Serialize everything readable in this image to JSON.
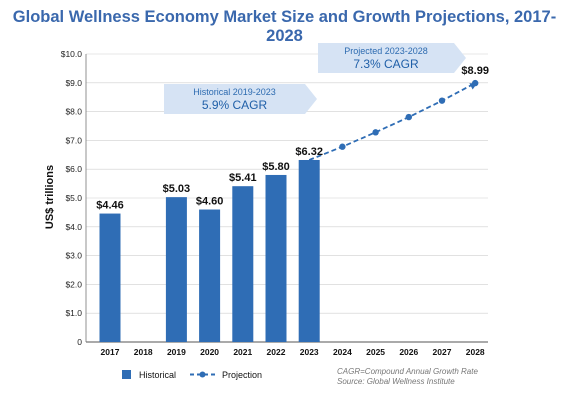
{
  "chart_data": {
    "type": "bar",
    "title": "Global Wellness Economy Market Size and Growth Projections, 2017-2028",
    "ylabel": "US$ trillions",
    "xlabel": "",
    "ylim": [
      0,
      10
    ],
    "yticks": [
      "0",
      "$1.0",
      "$2.0",
      "$3.0",
      "$4.0",
      "$5.0",
      "$6.0",
      "$7.0",
      "$8.0",
      "$9.0",
      "$10.0"
    ],
    "categories": [
      "2017",
      "2018",
      "2019",
      "2020",
      "2021",
      "2022",
      "2023",
      "2024",
      "2025",
      "2026",
      "2027",
      "2028"
    ],
    "series": [
      {
        "name": "Historical",
        "kind": "bar",
        "color": "#2f6db5",
        "values": [
          4.46,
          null,
          5.03,
          4.6,
          5.41,
          5.8,
          6.32,
          null,
          null,
          null,
          null,
          null
        ],
        "labels": [
          "$4.46",
          "",
          "$5.03",
          "$4.60",
          "$5.41",
          "$5.80",
          "$6.32",
          "",
          "",
          "",
          "",
          ""
        ]
      },
      {
        "name": "Projection",
        "kind": "dashed-line",
        "color": "#2f6db5",
        "values": [
          null,
          null,
          null,
          null,
          null,
          null,
          6.32,
          6.78,
          7.28,
          7.81,
          8.38,
          8.99
        ],
        "labels": [
          "",
          "",
          "",
          "",
          "",
          "",
          "",
          "",
          "",
          "",
          "",
          "$8.99"
        ]
      }
    ],
    "annotations": [
      {
        "line1": "Historical 2019-2023",
        "line2": "5.9% CAGR",
        "fill": "#d6e3f4"
      },
      {
        "line1": "Projected 2023-2028",
        "line2": "7.3% CAGR",
        "fill": "#d6e3f4"
      }
    ],
    "legend": {
      "placement": "bottom-left",
      "items": [
        "Historical",
        "Projection"
      ]
    },
    "notes": [
      "CAGR=Compound Annual Growth Rate",
      "Source: Global Wellness Institute"
    ],
    "grid": true,
    "colors": {
      "title": "#3a68ad",
      "bar": "#2f6db5",
      "grid": "#cfcfcf",
      "banner_text": "#1f5fa8"
    }
  }
}
